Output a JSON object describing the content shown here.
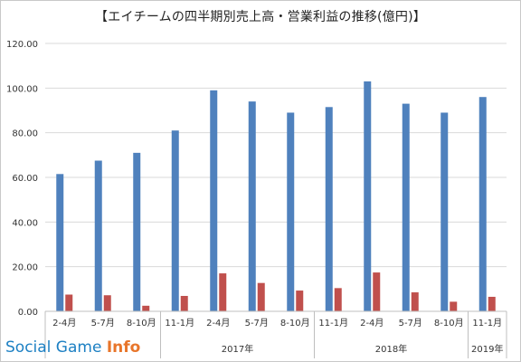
{
  "title": "【エイチームの四半期別売上高・営業利益の推移(億円)】",
  "watermark": {
    "part1": "Social Game ",
    "part2": "Info"
  },
  "chart_data": {
    "type": "bar",
    "title": "【エイチームの四半期別売上高・営業利益の推移(億円)】",
    "categories": [
      "2-4月",
      "5-7月",
      "8-10月",
      "11-1月",
      "2-4月",
      "5-7月",
      "8-10月",
      "11-1月",
      "2-4月",
      "5-7月",
      "8-10月",
      "11-1月"
    ],
    "year_groups": [
      {
        "label": "",
        "start": 0,
        "count": 3
      },
      {
        "label": "2017年",
        "start": 3,
        "count": 4
      },
      {
        "label": "2018年",
        "start": 7,
        "count": 4
      },
      {
        "label": "2019年",
        "start": 11,
        "count": 1
      }
    ],
    "series": [
      {
        "color": "#4f81bd",
        "values": [
          61.5,
          67.5,
          71.0,
          81.0,
          99.0,
          94.0,
          89.0,
          91.5,
          103.0,
          93.0,
          89.0,
          96.0
        ]
      },
      {
        "color": "#c0504d",
        "values": [
          7.5,
          7.2,
          2.5,
          6.9,
          17.0,
          12.7,
          9.3,
          10.4,
          17.4,
          8.5,
          4.3,
          6.5
        ]
      }
    ],
    "yticks": [
      "0.00",
      "20.00",
      "40.00",
      "60.00",
      "80.00",
      "100.00",
      "120.00"
    ],
    "ylim": [
      0,
      120
    ],
    "grid": true
  }
}
